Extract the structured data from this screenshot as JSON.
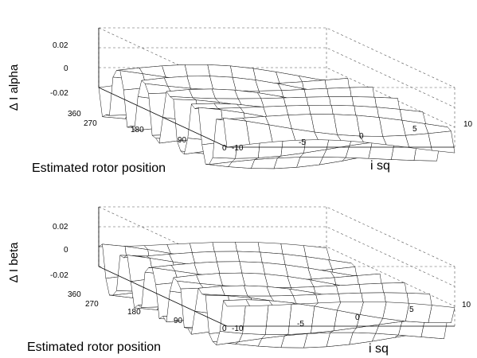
{
  "chart_data": [
    {
      "type": "surface",
      "zlabel": "Δ I alpha",
      "xlabel": "Estimated rotor position",
      "ylabel": "i sq",
      "xlim": [
        0,
        360
      ],
      "ylim": [
        -10,
        10
      ],
      "zlim": [
        -0.03,
        0.03
      ],
      "xticks": [
        "360",
        "270",
        "180",
        "90",
        "0"
      ],
      "yticks": [
        "-10",
        "-5",
        "0",
        "5",
        "10"
      ],
      "zticks": [
        "0.02",
        "0",
        "-0.02"
      ],
      "grid": "dashed",
      "surface": {
        "form": "periodic ripple in rotor position",
        "amplitude": 0.025,
        "cycles": 5,
        "phase": 0,
        "secondary_amplitude": 0.006,
        "x_samples": 37,
        "y_samples": 11
      }
    },
    {
      "type": "surface",
      "zlabel": "Δ I beta",
      "xlabel": "Estimated rotor position",
      "ylabel": "i sq",
      "xlim": [
        0,
        360
      ],
      "ylim": [
        -10,
        10
      ],
      "zlim": [
        -0.03,
        0.03
      ],
      "xticks": [
        "360",
        "270",
        "180",
        "90",
        "0"
      ],
      "yticks": [
        "-10",
        "-5",
        "0",
        "5",
        "10"
      ],
      "zticks": [
        "0.02",
        "0",
        "-0.02"
      ],
      "grid": "dashed",
      "surface": {
        "form": "periodic ripple in rotor position",
        "amplitude": 0.022,
        "cycles": 5,
        "phase": 1.57,
        "secondary_amplitude": 0.006,
        "x_samples": 37,
        "y_samples": 11
      }
    }
  ]
}
